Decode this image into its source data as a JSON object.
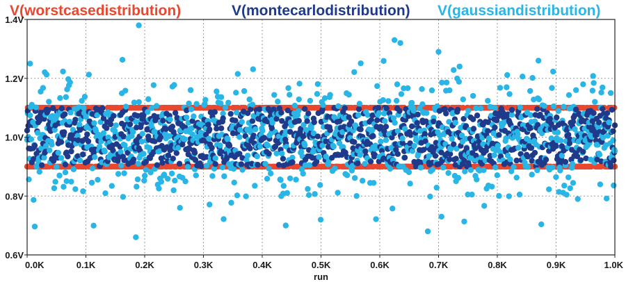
{
  "chart_data": {
    "type": "scatter",
    "title": "",
    "xlabel": "run",
    "ylabel": "",
    "xlim": [
      0,
      1000
    ],
    "ylim": [
      0.6,
      1.4
    ],
    "grid": true,
    "legend_placement": "top",
    "x_ticks": [
      {
        "value": 0,
        "label": "0.0K"
      },
      {
        "value": 100,
        "label": "0.1K"
      },
      {
        "value": 200,
        "label": "0.2K"
      },
      {
        "value": 300,
        "label": "0.3K"
      },
      {
        "value": 400,
        "label": "0.4K"
      },
      {
        "value": 500,
        "label": "0.5K"
      },
      {
        "value": 600,
        "label": "0.6K"
      },
      {
        "value": 700,
        "label": "0.7K"
      },
      {
        "value": 800,
        "label": "0.8K"
      },
      {
        "value": 900,
        "label": "0.9K"
      },
      {
        "value": 1000,
        "label": "1.0K"
      }
    ],
    "y_ticks": [
      {
        "value": 0.6,
        "label": "0.6V"
      },
      {
        "value": 0.8,
        "label": "0.8V"
      },
      {
        "value": 1.0,
        "label": "1.0V"
      },
      {
        "value": 1.2,
        "label": "1.2V"
      },
      {
        "value": 1.4,
        "label": "1.4V"
      }
    ],
    "series": [
      {
        "name": "V(worstcasedistribution)",
        "color": "#e8482f",
        "points": "runs 0-1000, each run at either 0.9V or 1.1V",
        "levels": [
          0.9,
          1.1
        ],
        "n": 1000
      },
      {
        "name": "V(montecarlodistribution)",
        "color": "#1f3a8a",
        "points": "uniform spread between 0.9V and 1.1V",
        "range": [
          0.9,
          1.1
        ],
        "n": 1000
      },
      {
        "name": "V(gaussiandistribution)",
        "color": "#29b6e6",
        "points": "gaussian spread around 1.0V",
        "mean": 1.0,
        "sigma": 0.1,
        "n": 1000,
        "notable_points": [
          {
            "x": 190,
            "y": 1.38
          },
          {
            "x": 185,
            "y": 0.66
          },
          {
            "x": 440,
            "y": 0.7
          },
          {
            "x": 625,
            "y": 1.33
          },
          {
            "x": 635,
            "y": 1.32
          },
          {
            "x": 700,
            "y": 1.29
          },
          {
            "x": 705,
            "y": 0.73
          },
          {
            "x": 5,
            "y": 1.25
          },
          {
            "x": 260,
            "y": 0.76
          },
          {
            "x": 870,
            "y": 1.26
          }
        ]
      }
    ]
  }
}
